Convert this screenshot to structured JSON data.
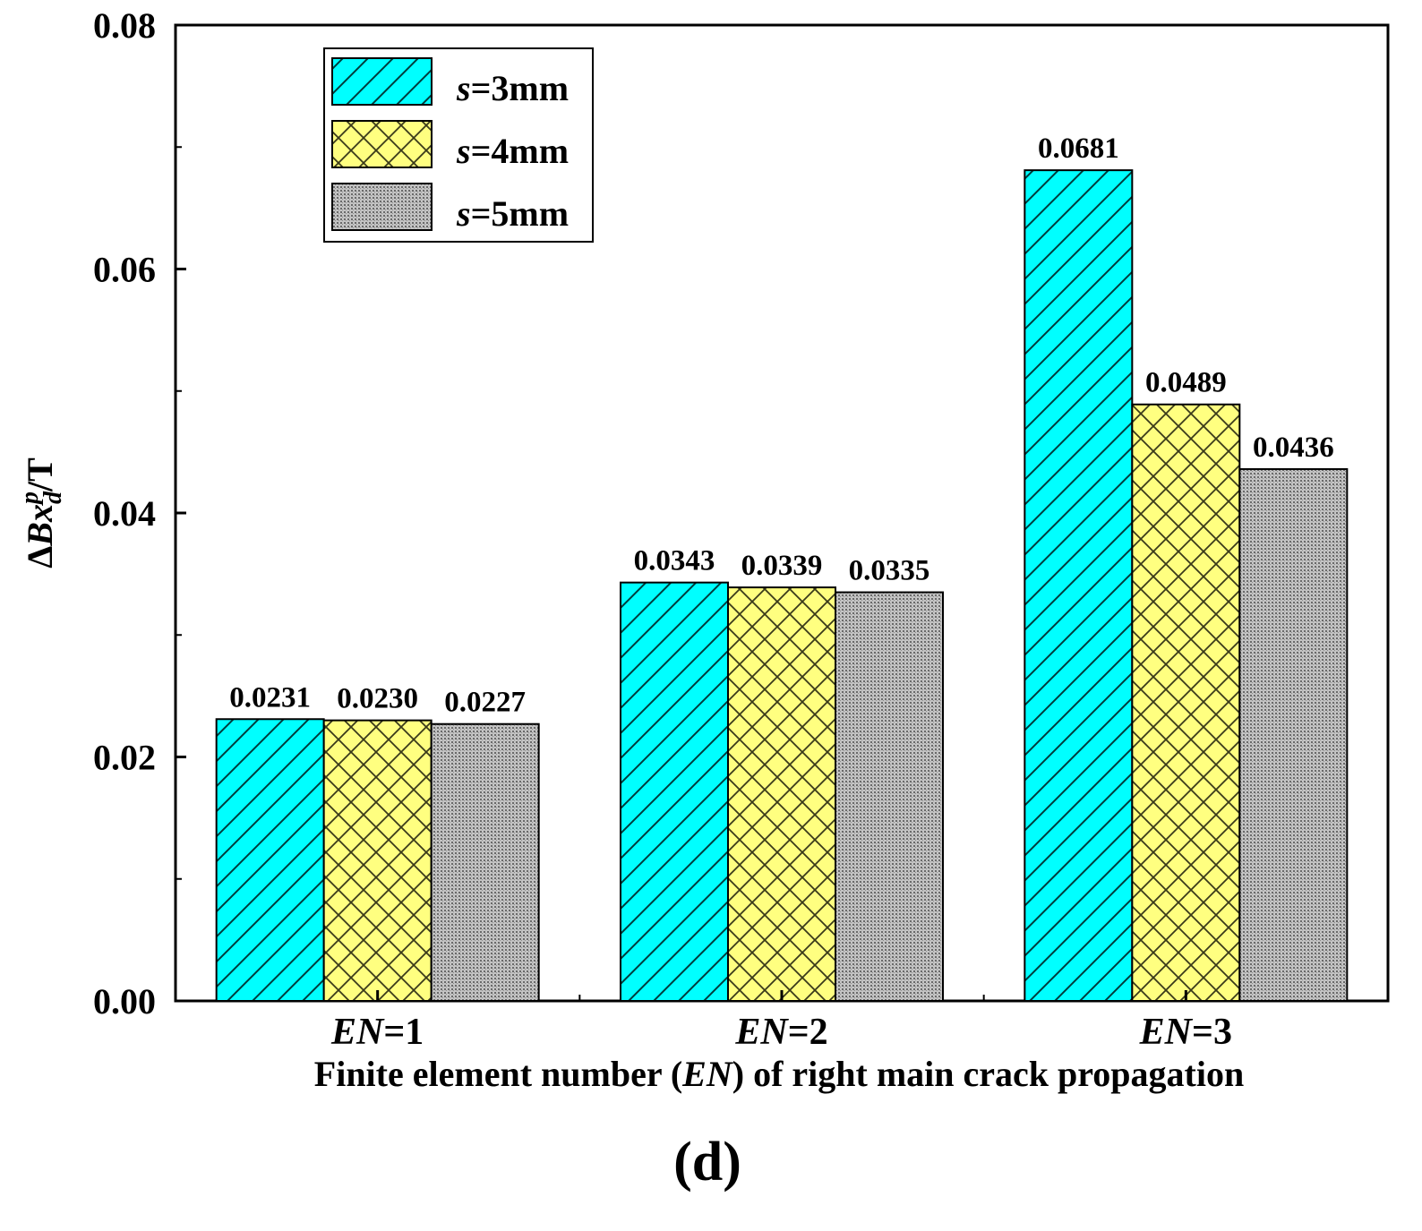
{
  "chart_data": {
    "type": "bar",
    "categories": [
      "EN=1",
      "EN=2",
      "EN=3"
    ],
    "category_parts": [
      {
        "italic": "EN",
        "rest": "=1"
      },
      {
        "italic": "EN",
        "rest": "=2"
      },
      {
        "italic": "EN",
        "rest": "=3"
      }
    ],
    "series": [
      {
        "name": "s=3mm",
        "name_italic": "s",
        "name_rest": "=3mm",
        "color": "#00ffff",
        "pattern": "diagonal",
        "values": [
          0.0231,
          0.0343,
          0.0681
        ],
        "labels": [
          "0.0231",
          "0.0343",
          "0.0681"
        ]
      },
      {
        "name": "s=4mm",
        "name_italic": "s",
        "name_rest": "=4mm",
        "color": "#ffff80",
        "pattern": "crosshatch",
        "values": [
          0.023,
          0.0339,
          0.0489
        ],
        "labels": [
          "0.0230",
          "0.0339",
          "0.0489"
        ]
      },
      {
        "name": "s=5mm",
        "name_italic": "s",
        "name_rest": "=5mm",
        "color": "#b0b0b0",
        "pattern": "dots",
        "values": [
          0.0227,
          0.0335,
          0.0436
        ],
        "labels": [
          "0.0227",
          "0.0335",
          "0.0436"
        ]
      }
    ],
    "yticks": [
      "0.00",
      "0.02",
      "0.04",
      "0.06",
      "0.08"
    ],
    "ytick_values": [
      0,
      0.02,
      0.04,
      0.06,
      0.08
    ],
    "ylim": [
      0,
      0.08
    ],
    "ylabel": "ΔBx_d^p/T",
    "ylabel_parts": {
      "delta": "Δ",
      "var": "Bx",
      "sub": "d",
      "sup": "p",
      "rest": "/T"
    },
    "xlabel": "Finite element number (EN) of right main crack propagation",
    "xlabel_parts": {
      "pre": "Finite element number (",
      "italic": "EN",
      "post": ") of right main crack propagation"
    },
    "legend_position": "top-left",
    "grid": false,
    "panel_label": "(d)"
  }
}
